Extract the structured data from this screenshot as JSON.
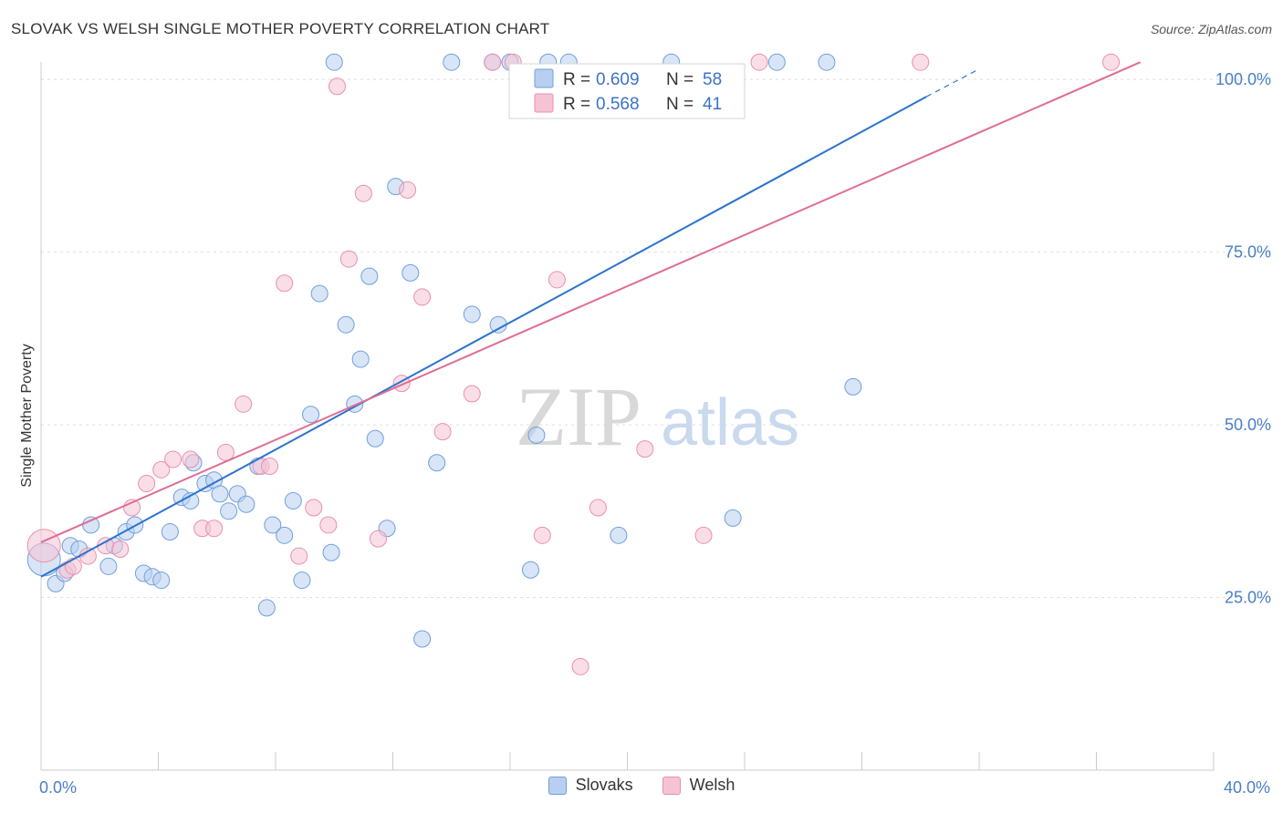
{
  "header": {
    "title": "SLOVAK VS WELSH SINGLE MOTHER POVERTY CORRELATION CHART",
    "source": "Source: ZipAtlas.com"
  },
  "watermark": {
    "zip": "ZIP",
    "atlas": "atlas"
  },
  "chart_data": {
    "type": "scatter",
    "title": "SLOVAK VS WELSH SINGLE MOTHER POVERTY CORRELATION CHART",
    "xlabel": "",
    "ylabel": "Single Mother Poverty",
    "xlim": [
      0,
      40
    ],
    "ylim": [
      0,
      102
    ],
    "x_tick_labels": [
      {
        "value": 0,
        "label": "0.0%"
      },
      {
        "value": 40,
        "label": "40.0%"
      }
    ],
    "y_tick_labels": [
      {
        "value": 25,
        "label": "25.0%"
      },
      {
        "value": 50,
        "label": "50.0%"
      },
      {
        "value": 75,
        "label": "75.0%"
      },
      {
        "value": 100,
        "label": "100.0%"
      }
    ],
    "grid": true,
    "legend_position": "top-center",
    "series": [
      {
        "name": "Slovaks",
        "color": "#6f9fdc",
        "fill": "#b8cff1",
        "line_color": "#2a73cc",
        "stats": {
          "r_label": "R =",
          "r": "0.609",
          "n_label": "N =",
          "n": "58"
        },
        "trend": {
          "x0": 0,
          "y0": 28.0,
          "x1": 30.2,
          "y1": 97.5,
          "dash_to_x": 32.0,
          "dash_to_y": 101.5
        },
        "points": [
          [
            0.1,
            30.5,
            18
          ],
          [
            0.5,
            27.0,
            9
          ],
          [
            0.8,
            28.5,
            9
          ],
          [
            1.0,
            32.5,
            9
          ],
          [
            1.3,
            32.0,
            9
          ],
          [
            1.7,
            35.5,
            9
          ],
          [
            2.3,
            29.5,
            9
          ],
          [
            2.5,
            32.5,
            9
          ],
          [
            2.9,
            34.5,
            9
          ],
          [
            3.2,
            35.5,
            9
          ],
          [
            3.5,
            28.5,
            9
          ],
          [
            3.8,
            28.0,
            9
          ],
          [
            4.1,
            27.5,
            9
          ],
          [
            4.4,
            34.5,
            9
          ],
          [
            4.8,
            39.5,
            9
          ],
          [
            5.1,
            39.0,
            9
          ],
          [
            5.2,
            44.5,
            9
          ],
          [
            5.6,
            41.5,
            9
          ],
          [
            5.9,
            42.0,
            9
          ],
          [
            6.1,
            40.0,
            9
          ],
          [
            6.4,
            37.5,
            9
          ],
          [
            6.7,
            40.0,
            9
          ],
          [
            7.0,
            38.5,
            9
          ],
          [
            7.4,
            44.0,
            9
          ],
          [
            7.7,
            23.5,
            9
          ],
          [
            7.9,
            35.5,
            9
          ],
          [
            8.3,
            34.0,
            9
          ],
          [
            8.6,
            39.0,
            9
          ],
          [
            8.9,
            27.5,
            9
          ],
          [
            9.2,
            51.5,
            9
          ],
          [
            9.5,
            69.0,
            9
          ],
          [
            9.9,
            31.5,
            9
          ],
          [
            10.0,
            102.5,
            9
          ],
          [
            10.4,
            64.5,
            9
          ],
          [
            10.7,
            53.0,
            9
          ],
          [
            10.9,
            59.5,
            9
          ],
          [
            11.2,
            71.5,
            9
          ],
          [
            11.4,
            48.0,
            9
          ],
          [
            11.8,
            35.0,
            9
          ],
          [
            12.1,
            84.5,
            9
          ],
          [
            12.6,
            72.0,
            9
          ],
          [
            13.0,
            19.0,
            9
          ],
          [
            13.5,
            44.5,
            9
          ],
          [
            14.0,
            102.5,
            9
          ],
          [
            14.7,
            66.0,
            9
          ],
          [
            15.4,
            102.5,
            9
          ],
          [
            15.6,
            64.5,
            9
          ],
          [
            16.0,
            102.5,
            9
          ],
          [
            16.7,
            29.0,
            9
          ],
          [
            16.9,
            48.5,
            9
          ],
          [
            17.3,
            102.5,
            9
          ],
          [
            18.0,
            102.5,
            9
          ],
          [
            19.7,
            34.0,
            9
          ],
          [
            21.5,
            102.5,
            9
          ],
          [
            23.6,
            36.5,
            9
          ],
          [
            25.1,
            102.5,
            9
          ],
          [
            26.8,
            102.5,
            9
          ],
          [
            27.7,
            55.5,
            9
          ]
        ]
      },
      {
        "name": "Welsh",
        "color": "#e98fb0",
        "fill": "#f6c3d4",
        "line_color": "#e06c96",
        "stats": {
          "r_label": "R =",
          "r": "0.568",
          "n_label": "N =",
          "n": "41"
        },
        "trend": {
          "x0": 0,
          "y0": 33.0,
          "x1": 37.5,
          "y1": 102.5
        },
        "points": [
          [
            0.1,
            32.5,
            18
          ],
          [
            0.9,
            29.0,
            9
          ],
          [
            1.1,
            29.5,
            9
          ],
          [
            1.6,
            31.0,
            9
          ],
          [
            2.2,
            32.5,
            9
          ],
          [
            2.7,
            32.0,
            9
          ],
          [
            3.1,
            38.0,
            9
          ],
          [
            3.6,
            41.5,
            9
          ],
          [
            4.1,
            43.5,
            9
          ],
          [
            4.5,
            45.0,
            9
          ],
          [
            5.1,
            45.0,
            9
          ],
          [
            5.5,
            35.0,
            9
          ],
          [
            5.9,
            35.0,
            9
          ],
          [
            6.3,
            46.0,
            9
          ],
          [
            6.9,
            53.0,
            9
          ],
          [
            7.5,
            44.0,
            9
          ],
          [
            7.8,
            44.0,
            9
          ],
          [
            8.3,
            70.5,
            9
          ],
          [
            8.8,
            31.0,
            9
          ],
          [
            9.3,
            38.0,
            9
          ],
          [
            9.8,
            35.5,
            9
          ],
          [
            10.1,
            99.0,
            9
          ],
          [
            10.5,
            74.0,
            9
          ],
          [
            11.0,
            83.5,
            9
          ],
          [
            11.5,
            33.5,
            9
          ],
          [
            12.3,
            56.0,
            9
          ],
          [
            12.5,
            84.0,
            9
          ],
          [
            13.0,
            68.5,
            9
          ],
          [
            13.7,
            49.0,
            9
          ],
          [
            14.7,
            54.5,
            9
          ],
          [
            15.4,
            102.5,
            9
          ],
          [
            16.1,
            102.5,
            9
          ],
          [
            17.1,
            34.0,
            9
          ],
          [
            17.6,
            71.0,
            9
          ],
          [
            18.4,
            15.0,
            9
          ],
          [
            19.0,
            38.0,
            9
          ],
          [
            20.6,
            46.5,
            9
          ],
          [
            22.6,
            34.0,
            9
          ],
          [
            24.5,
            102.5,
            9
          ],
          [
            30.0,
            102.5,
            9
          ],
          [
            36.5,
            102.5,
            9
          ]
        ]
      }
    ]
  }
}
